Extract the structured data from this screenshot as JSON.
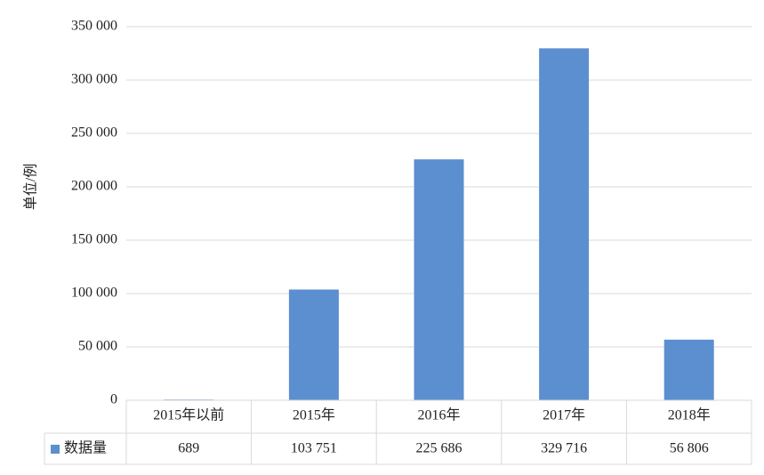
{
  "chart_data": {
    "type": "bar",
    "y_label": "单位/例",
    "categories": [
      "2015年以前",
      "2015年",
      "2016年",
      "2017年",
      "2018年"
    ],
    "series": [
      {
        "name": "数据量",
        "color": "#5b8fcf",
        "values": [
          689,
          103751,
          225686,
          329716,
          56806
        ],
        "value_labels": [
          "689",
          "103 751",
          "225 686",
          "329 716",
          "56 806"
        ]
      }
    ],
    "ylim": [
      0,
      350000
    ],
    "yticks": [
      0,
      {
        "value": 50000,
        "label": "50 000"
      },
      {
        "value": 100000,
        "label": "100 000"
      },
      {
        "value": 150000,
        "label": "150 000"
      },
      {
        "value": 200000,
        "label": "200 000"
      },
      {
        "value": 250000,
        "label": "250 000"
      },
      {
        "value": 300000,
        "label": "300 000"
      },
      {
        "value": 350000,
        "label": "350 000"
      }
    ],
    "grid": true,
    "data_table": true
  }
}
